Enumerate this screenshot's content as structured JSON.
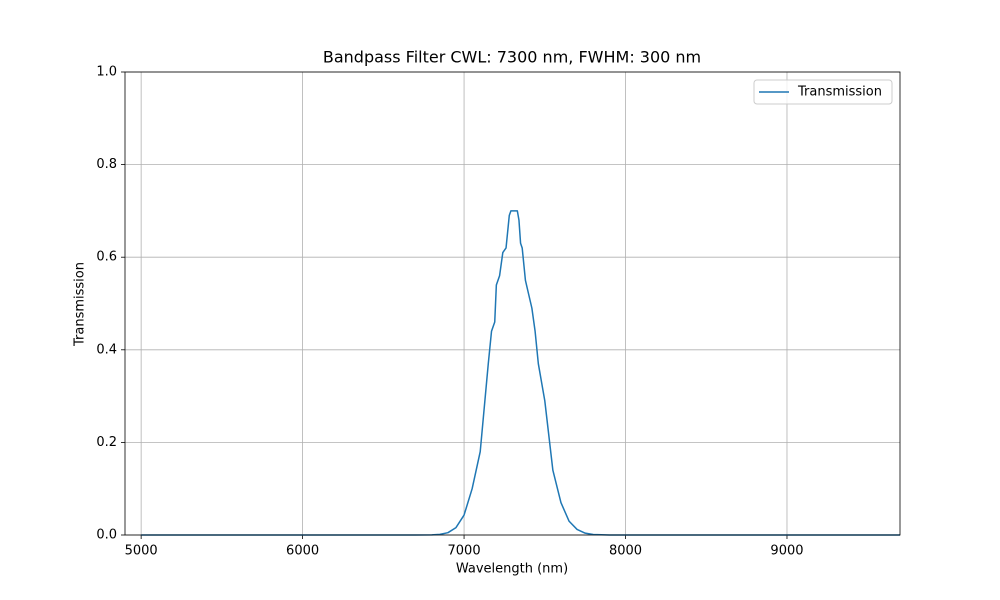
{
  "chart_data": {
    "type": "line",
    "title": "Bandpass Filter CWL: 7300 nm, FWHM: 300 nm",
    "x_label": "Wavelength (nm)",
    "y_label": "Transmission",
    "x": [
      5000,
      5500,
      6000,
      6500,
      6700,
      6800,
      6850,
      6900,
      6950,
      7000,
      7050,
      7100,
      7150,
      7170,
      7190,
      7200,
      7220,
      7240,
      7260,
      7280,
      7290,
      7310,
      7330,
      7340,
      7350,
      7360,
      7380,
      7400,
      7420,
      7440,
      7460,
      7480,
      7500,
      7550,
      7600,
      7650,
      7700,
      7750,
      7800,
      7900,
      8000,
      9000,
      9700
    ],
    "series": [
      {
        "name": "Transmission",
        "color": "#1f77b4",
        "values": [
          0,
          0,
          0,
          0,
          0,
          0.0003,
          0.0013,
          0.005,
          0.016,
          0.043,
          0.1,
          0.18,
          0.37,
          0.44,
          0.46,
          0.54,
          0.56,
          0.61,
          0.62,
          0.69,
          0.7,
          0.7,
          0.7,
          0.68,
          0.63,
          0.62,
          0.55,
          0.52,
          0.49,
          0.44,
          0.37,
          0.33,
          0.29,
          0.14,
          0.07,
          0.03,
          0.012,
          0.004,
          0.001,
          0,
          0,
          0,
          0
        ]
      }
    ],
    "xlim": [
      4900,
      9700
    ],
    "ylim": [
      0,
      1
    ],
    "xticks": [
      5000,
      6000,
      7000,
      8000,
      9000
    ],
    "yticks": [
      {
        "value": 0,
        "label": "0.0"
      },
      {
        "value": 0.2,
        "label": "0.2"
      },
      {
        "value": 0.4,
        "label": "0.4"
      },
      {
        "value": 0.6,
        "label": "0.6"
      },
      {
        "value": 0.8,
        "label": "0.8"
      },
      {
        "value": 1,
        "label": "1.0"
      }
    ],
    "grid": true,
    "legend": "upper right"
  }
}
